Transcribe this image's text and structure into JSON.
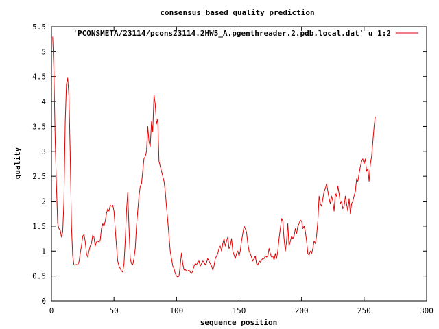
{
  "chart_data": {
    "type": "line",
    "title": "consensus based quality prediction",
    "xlabel": "sequence position",
    "ylabel": "quality",
    "xlim": [
      0,
      300
    ],
    "ylim": [
      0,
      5.5
    ],
    "xticks": [
      0,
      50,
      100,
      150,
      200,
      250,
      300
    ],
    "xtick_labels": [
      "0",
      "50",
      "100",
      "150",
      "200",
      "250",
      "300"
    ],
    "yticks": [
      0,
      0.5,
      1,
      1.5,
      2,
      2.5,
      3,
      3.5,
      4,
      4.5,
      5,
      5.5
    ],
    "ytick_labels": [
      "0",
      "0.5",
      "1",
      "1.5",
      "2",
      "2.5",
      "3",
      "3.5",
      "4",
      "4.5",
      "5",
      "5.5"
    ],
    "grid": false,
    "legend_position": "top-right",
    "series": [
      {
        "name": "'PCONSMETA/23114/pcons23114.2HW5_A.pgenthreader.2.pdb.local.dat' u 1:2",
        "color": "#e00000",
        "points": [
          [
            1,
            5.3
          ],
          [
            2,
            4.6
          ],
          [
            3,
            3.2
          ],
          [
            4,
            2.3
          ],
          [
            5,
            1.55
          ],
          [
            6,
            1.45
          ],
          [
            7,
            1.42
          ],
          [
            8,
            1.28
          ],
          [
            9,
            1.38
          ],
          [
            10,
            2.0
          ],
          [
            11,
            3.6
          ],
          [
            12,
            4.35
          ],
          [
            13,
            4.47
          ],
          [
            14,
            4.1
          ],
          [
            15,
            3.0
          ],
          [
            16,
            1.5
          ],
          [
            17,
            0.9
          ],
          [
            18,
            0.72
          ],
          [
            19,
            0.72
          ],
          [
            20,
            0.73
          ],
          [
            21,
            0.72
          ],
          [
            22,
            0.78
          ],
          [
            23,
            0.95
          ],
          [
            24,
            1.1
          ],
          [
            25,
            1.3
          ],
          [
            26,
            1.33
          ],
          [
            27,
            1.2
          ],
          [
            28,
            0.95
          ],
          [
            29,
            0.88
          ],
          [
            30,
            1.0
          ],
          [
            31,
            1.1
          ],
          [
            32,
            1.15
          ],
          [
            33,
            1.32
          ],
          [
            34,
            1.28
          ],
          [
            35,
            1.1
          ],
          [
            36,
            1.18
          ],
          [
            37,
            1.2
          ],
          [
            38,
            1.18
          ],
          [
            39,
            1.22
          ],
          [
            40,
            1.45
          ],
          [
            41,
            1.55
          ],
          [
            42,
            1.5
          ],
          [
            43,
            1.6
          ],
          [
            44,
            1.75
          ],
          [
            45,
            1.85
          ],
          [
            46,
            1.8
          ],
          [
            47,
            1.92
          ],
          [
            48,
            1.9
          ],
          [
            49,
            1.92
          ],
          [
            50,
            1.8
          ],
          [
            51,
            1.45
          ],
          [
            52,
            1.1
          ],
          [
            53,
            0.8
          ],
          [
            54,
            0.7
          ],
          [
            55,
            0.65
          ],
          [
            56,
            0.6
          ],
          [
            57,
            0.58
          ],
          [
            58,
            0.75
          ],
          [
            59,
            1.2
          ],
          [
            60,
            1.8
          ],
          [
            61,
            2.18
          ],
          [
            62,
            1.5
          ],
          [
            63,
            0.85
          ],
          [
            64,
            0.75
          ],
          [
            65,
            0.72
          ],
          [
            66,
            0.85
          ],
          [
            67,
            1.05
          ],
          [
            68,
            1.5
          ],
          [
            69,
            1.8
          ],
          [
            70,
            2.1
          ],
          [
            71,
            2.3
          ],
          [
            72,
            2.35
          ],
          [
            73,
            2.6
          ],
          [
            74,
            2.85
          ],
          [
            75,
            2.9
          ],
          [
            76,
            3.0
          ],
          [
            77,
            3.5
          ],
          [
            78,
            3.2
          ],
          [
            79,
            3.1
          ],
          [
            80,
            3.6
          ],
          [
            81,
            3.4
          ],
          [
            82,
            4.13
          ],
          [
            83,
            3.95
          ],
          [
            84,
            3.55
          ],
          [
            85,
            3.65
          ],
          [
            86,
            2.8
          ],
          [
            87,
            2.7
          ],
          [
            88,
            2.6
          ],
          [
            89,
            2.5
          ],
          [
            90,
            2.4
          ],
          [
            91,
            2.2
          ],
          [
            92,
            1.9
          ],
          [
            93,
            1.6
          ],
          [
            94,
            1.3
          ],
          [
            95,
            1.0
          ],
          [
            96,
            0.85
          ],
          [
            97,
            0.7
          ],
          [
            98,
            0.65
          ],
          [
            99,
            0.55
          ],
          [
            100,
            0.5
          ],
          [
            101,
            0.48
          ],
          [
            102,
            0.5
          ],
          [
            103,
            0.72
          ],
          [
            104,
            0.96
          ],
          [
            105,
            0.75
          ],
          [
            106,
            0.62
          ],
          [
            107,
            0.63
          ],
          [
            108,
            0.6
          ],
          [
            109,
            0.6
          ],
          [
            110,
            0.62
          ],
          [
            111,
            0.58
          ],
          [
            112,
            0.55
          ],
          [
            113,
            0.6
          ],
          [
            114,
            0.7
          ],
          [
            115,
            0.75
          ],
          [
            116,
            0.72
          ],
          [
            117,
            0.78
          ],
          [
            118,
            0.8
          ],
          [
            119,
            0.7
          ],
          [
            120,
            0.75
          ],
          [
            121,
            0.8
          ],
          [
            122,
            0.78
          ],
          [
            123,
            0.72
          ],
          [
            124,
            0.77
          ],
          [
            125,
            0.85
          ],
          [
            126,
            0.8
          ],
          [
            127,
            0.75
          ],
          [
            128,
            0.7
          ],
          [
            129,
            0.62
          ],
          [
            130,
            0.7
          ],
          [
            131,
            0.85
          ],
          [
            132,
            0.9
          ],
          [
            133,
            0.95
          ],
          [
            134,
            1.05
          ],
          [
            135,
            1.1
          ],
          [
            136,
            1.0
          ],
          [
            137,
            1.15
          ],
          [
            138,
            1.25
          ],
          [
            139,
            1.1
          ],
          [
            140,
            1.2
          ],
          [
            141,
            1.28
          ],
          [
            142,
            1.05
          ],
          [
            143,
            1.1
          ],
          [
            144,
            1.25
          ],
          [
            145,
            1.0
          ],
          [
            146,
            0.92
          ],
          [
            147,
            0.85
          ],
          [
            148,
            0.95
          ],
          [
            149,
            1.0
          ],
          [
            150,
            0.9
          ],
          [
            151,
            1.0
          ],
          [
            152,
            1.2
          ],
          [
            153,
            1.35
          ],
          [
            154,
            1.5
          ],
          [
            155,
            1.45
          ],
          [
            156,
            1.38
          ],
          [
            157,
            1.15
          ],
          [
            158,
            1.0
          ],
          [
            159,
            0.95
          ],
          [
            160,
            0.88
          ],
          [
            161,
            0.8
          ],
          [
            162,
            0.85
          ],
          [
            163,
            0.9
          ],
          [
            164,
            0.75
          ],
          [
            165,
            0.72
          ],
          [
            166,
            0.8
          ],
          [
            167,
            0.78
          ],
          [
            168,
            0.82
          ],
          [
            169,
            0.85
          ],
          [
            170,
            0.85
          ],
          [
            171,
            0.9
          ],
          [
            172,
            0.88
          ],
          [
            173,
            0.9
          ],
          [
            174,
            1.05
          ],
          [
            175,
            0.95
          ],
          [
            176,
            0.88
          ],
          [
            177,
            0.9
          ],
          [
            178,
            0.82
          ],
          [
            179,
            0.95
          ],
          [
            180,
            0.85
          ],
          [
            181,
            1.0
          ],
          [
            182,
            1.25
          ],
          [
            183,
            1.45
          ],
          [
            184,
            1.65
          ],
          [
            185,
            1.6
          ],
          [
            186,
            1.25
          ],
          [
            187,
            1.0
          ],
          [
            188,
            1.2
          ],
          [
            189,
            1.55
          ],
          [
            190,
            1.1
          ],
          [
            191,
            1.2
          ],
          [
            192,
            1.3
          ],
          [
            193,
            1.25
          ],
          [
            194,
            1.3
          ],
          [
            195,
            1.45
          ],
          [
            196,
            1.35
          ],
          [
            197,
            1.5
          ],
          [
            198,
            1.55
          ],
          [
            199,
            1.62
          ],
          [
            200,
            1.6
          ],
          [
            201,
            1.45
          ],
          [
            202,
            1.5
          ],
          [
            203,
            1.4
          ],
          [
            204,
            1.2
          ],
          [
            205,
            0.95
          ],
          [
            206,
            0.92
          ],
          [
            207,
            1.0
          ],
          [
            208,
            0.95
          ],
          [
            209,
            1.05
          ],
          [
            210,
            1.2
          ],
          [
            211,
            1.15
          ],
          [
            212,
            1.3
          ],
          [
            213,
            1.6
          ],
          [
            214,
            2.1
          ],
          [
            215,
            1.95
          ],
          [
            216,
            1.9
          ],
          [
            217,
            2.05
          ],
          [
            218,
            2.2
          ],
          [
            219,
            2.25
          ],
          [
            220,
            2.35
          ],
          [
            221,
            2.2
          ],
          [
            222,
            2.05
          ],
          [
            223,
            1.95
          ],
          [
            224,
            2.1
          ],
          [
            225,
            2.0
          ],
          [
            226,
            1.8
          ],
          [
            227,
            2.15
          ],
          [
            228,
            2.1
          ],
          [
            229,
            2.3
          ],
          [
            230,
            2.15
          ],
          [
            231,
            1.95
          ],
          [
            232,
            2.0
          ],
          [
            233,
            1.85
          ],
          [
            234,
            1.9
          ],
          [
            235,
            2.1
          ],
          [
            236,
            1.95
          ],
          [
            237,
            1.8
          ],
          [
            238,
            2.05
          ],
          [
            239,
            1.75
          ],
          [
            240,
            1.95
          ],
          [
            241,
            2.0
          ],
          [
            242,
            2.1
          ],
          [
            243,
            2.2
          ],
          [
            244,
            2.45
          ],
          [
            245,
            2.4
          ],
          [
            246,
            2.55
          ],
          [
            247,
            2.7
          ],
          [
            248,
            2.8
          ],
          [
            249,
            2.85
          ],
          [
            250,
            2.75
          ],
          [
            251,
            2.85
          ],
          [
            252,
            2.6
          ],
          [
            253,
            2.65
          ],
          [
            254,
            2.4
          ],
          [
            255,
            2.75
          ],
          [
            256,
            2.9
          ],
          [
            257,
            3.2
          ],
          [
            258,
            3.5
          ],
          [
            259,
            3.7
          ]
        ]
      }
    ]
  }
}
